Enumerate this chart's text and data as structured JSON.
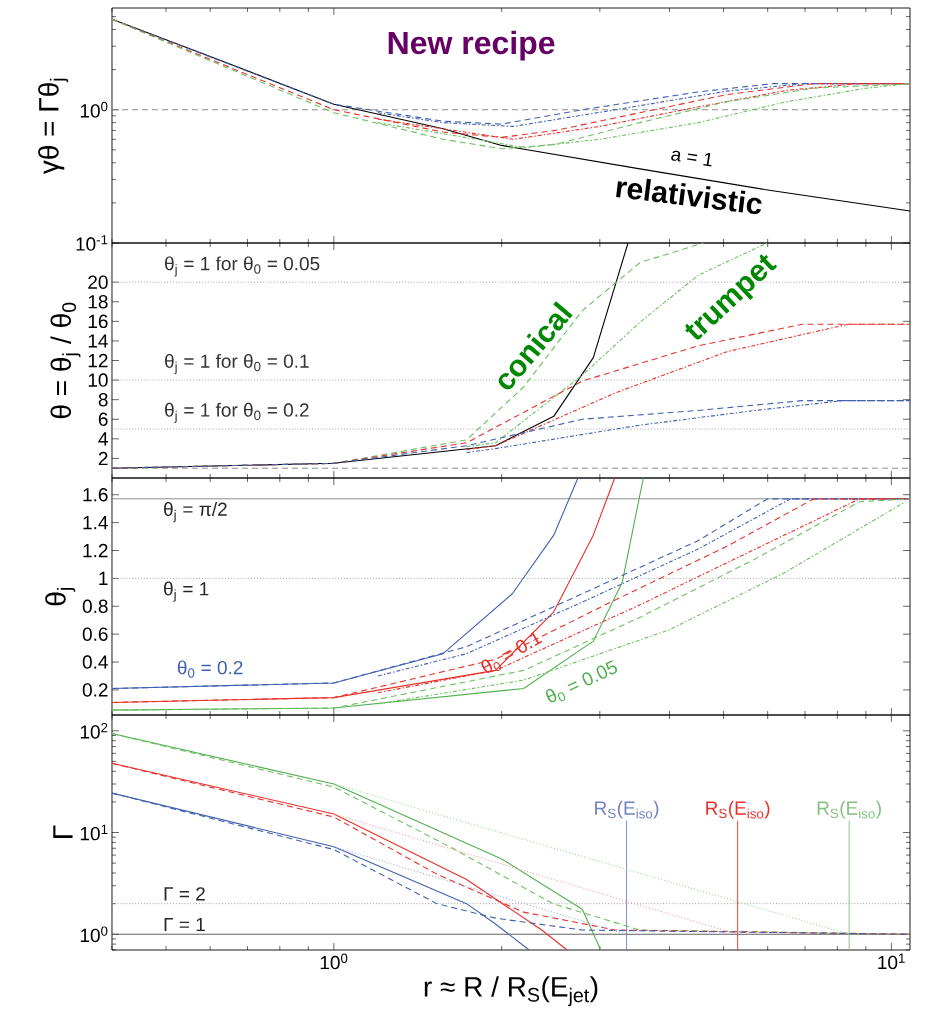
{
  "chart_data": [
    {
      "type": "line",
      "ylabel": "γθ = Γθ$_{j}$",
      "log": "xy",
      "tick_labels": "y",
      "xlim": [
        0.4,
        10.8
      ],
      "ylim": [
        0.1,
        5.8
      ],
      "yticks": [
        {
          "value": 0.1,
          "label": "10$^{-1}$"
        },
        {
          "value": 1,
          "label": "10$^{0}$"
        }
      ],
      "series": [
        {
          "color": "#000000",
          "line_style": "solid",
          "x": [
            0.4,
            0.62,
            1,
            1.57,
            2,
            3.54,
            6,
            10.8
          ],
          "values": [
            4.77,
            2.38,
            1.1,
            0.72,
            0.54,
            0.36,
            0.25,
            0.174
          ]
        },
        {
          "color": "#4060b0",
          "line_style": "dashed",
          "x": [
            0.4,
            1,
            1.57,
            2,
            2.79,
            4.5,
            6.13,
            10.8
          ],
          "values": [
            4.77,
            1.1,
            0.82,
            0.78,
            1.0,
            1.36,
            1.57,
            1.57
          ]
        },
        {
          "color": "#4060b0",
          "line_style": "dashdot",
          "x": [
            1.2,
            1.57,
            2.1,
            3.2,
            5.07,
            7,
            10.8
          ],
          "values": [
            0.95,
            0.8,
            0.75,
            1.0,
            1.38,
            1.57,
            1.57
          ]
        },
        {
          "color": "#e8302a",
          "line_style": "dashed",
          "x": [
            0.4,
            1,
            1.57,
            2,
            2.5,
            3.54,
            5.07,
            7.25,
            10.8
          ],
          "values": [
            4.77,
            1.0,
            0.68,
            0.62,
            0.7,
            0.95,
            1.3,
            1.57,
            1.57
          ]
        },
        {
          "color": "#e8302a",
          "line_style": "dashdot",
          "x": [
            1.2,
            2.1,
            3,
            4.5,
            6.5,
            8.77,
            10.8
          ],
          "values": [
            0.85,
            0.6,
            0.75,
            1.05,
            1.4,
            1.57,
            1.57
          ]
        },
        {
          "color": "#6cc060",
          "line_style": "dashed",
          "x": [
            0.4,
            1,
            1.57,
            2,
            2.5,
            3.54,
            5.07,
            7.25,
            10.8
          ],
          "values": [
            4.77,
            0.95,
            0.6,
            0.51,
            0.55,
            0.8,
            1.15,
            1.45,
            1.57
          ]
        },
        {
          "color": "#6cc060",
          "line_style": "dashdot",
          "x": [
            1.2,
            2.2,
            3,
            4.5,
            6.5,
            9,
            10.8
          ],
          "values": [
            0.8,
            0.52,
            0.6,
            0.8,
            1.15,
            1.45,
            1.57
          ]
        }
      ],
      "ref_lines": [
        {
          "axis": "y",
          "value": 1,
          "color": "#808080",
          "line_style": "dashed"
        }
      ],
      "annotations": [
        "New recipe",
        "a = 1",
        "relativistic"
      ]
    },
    {
      "type": "line",
      "ylabel": "θ = θ$_{j}$ / θ$_{0}$",
      "log": "x",
      "tick_labels": "y",
      "xlim": [
        0.4,
        10.8
      ],
      "ylim": [
        0,
        24
      ],
      "yticks": [
        2,
        4,
        6,
        8,
        10,
        12,
        14,
        16,
        18,
        20
      ],
      "series": [
        {
          "color": "#000000",
          "line_style": "solid",
          "x": [
            0.4,
            1,
            1.95,
            2.48,
            2.92,
            3.37
          ],
          "values": [
            1,
            1.5,
            3.3,
            6.3,
            12.3,
            24
          ]
        },
        {
          "color": "#6cc060",
          "line_style": "dashed",
          "x": [
            0.4,
            1,
            1.73,
            2.19,
            2.79,
            3.54,
            4.6
          ],
          "values": [
            1,
            1.5,
            3.9,
            9.3,
            17.1,
            22,
            24
          ]
        },
        {
          "color": "#6cc060",
          "line_style": "dashdot",
          "x": [
            1.73,
            1.95,
            2.79,
            3.54,
            4.5,
            5.99
          ],
          "values": [
            3.2,
            3.6,
            10.5,
            15.9,
            20.7,
            24
          ]
        },
        {
          "color": "#e8302a",
          "line_style": "dashed",
          "x": [
            0.4,
            1,
            1.73,
            2.79,
            4.5,
            6.92,
            10.8
          ],
          "values": [
            1,
            1.5,
            3.6,
            9.9,
            13.5,
            15.7,
            15.7
          ]
        },
        {
          "color": "#e8302a",
          "line_style": "dashdot",
          "x": [
            1.73,
            1.95,
            3.2,
            5.07,
            8.36,
            10.8
          ],
          "values": [
            2.9,
            3.3,
            8.7,
            12.9,
            15.7,
            15.7
          ]
        },
        {
          "color": "#4060b0",
          "line_style": "dashed",
          "x": [
            0.4,
            1,
            1.73,
            2.79,
            4.5,
            6.92,
            10.8
          ],
          "values": [
            1,
            1.5,
            3.3,
            6.0,
            6.9,
            7.9,
            7.9
          ]
        },
        {
          "color": "#4060b0",
          "line_style": "dashdot",
          "x": [
            1.73,
            1.95,
            3.54,
            5.7,
            8.2,
            10.8
          ],
          "values": [
            2.6,
            3.0,
            5.4,
            6.9,
            7.9,
            7.9
          ]
        }
      ],
      "ref_lines": [
        {
          "axis": "y",
          "value": 1,
          "color": "#808080",
          "line_style": "dashed"
        },
        {
          "axis": "y",
          "value": 20,
          "color": "#909090",
          "line_style": "dotted"
        },
        {
          "axis": "y",
          "value": 10,
          "color": "#909090",
          "line_style": "dotted"
        },
        {
          "axis": "y",
          "value": 5,
          "color": "#909090",
          "line_style": "dotted"
        }
      ],
      "annotations": [
        "θ$_{j}$ = 1  for  θ$_{0}$ = 0.05",
        "θ$_{j}$ = 1  for  θ$_{0}$ = 0.1",
        "θ$_{j}$ = 1  for  θ$_{0}$ = 0.2",
        "conical",
        "trumpet"
      ]
    },
    {
      "type": "line",
      "ylabel": "θ$_{j}$",
      "log": "x",
      "tick_labels": "y",
      "xlim": [
        0.4,
        10.8
      ],
      "ylim": [
        0.02,
        1.72
      ],
      "yticks": [
        0.2,
        0.4,
        0.6,
        0.8,
        1,
        1.2,
        1.4,
        1.6
      ],
      "series": [
        {
          "color": "#4060b0",
          "line_style": "solid",
          "x": [
            0.4,
            1,
            1.57,
            2.09,
            2.48,
            2.74
          ],
          "values": [
            0.21,
            0.25,
            0.46,
            0.89,
            1.31,
            1.72
          ]
        },
        {
          "color": "#e8302a",
          "line_style": "solid",
          "x": [
            0.4,
            1,
            1.95,
            2.48,
            2.92,
            3.19
          ],
          "values": [
            0.11,
            0.145,
            0.34,
            0.76,
            1.31,
            1.72
          ]
        },
        {
          "color": "#50b050",
          "line_style": "solid",
          "x": [
            0.4,
            1,
            2.19,
            2.92,
            3.29,
            3.59
          ],
          "values": [
            0.055,
            0.07,
            0.21,
            0.55,
            0.97,
            1.72
          ]
        },
        {
          "color": "#4060b0",
          "line_style": "dashed",
          "x": [
            0.4,
            1,
            1.73,
            2.79,
            4.5,
            5.99,
            10.8
          ],
          "values": [
            0.21,
            0.25,
            0.51,
            0.89,
            1.27,
            1.57,
            1.57
          ]
        },
        {
          "color": "#4060b0",
          "line_style": "dashdot",
          "x": [
            1.2,
            1.73,
            2.79,
            4.5,
            6.59,
            10.8
          ],
          "values": [
            0.3,
            0.46,
            0.83,
            1.21,
            1.57,
            1.57
          ]
        },
        {
          "color": "#e8302a",
          "line_style": "dashed",
          "x": [
            0.4,
            1,
            1.95,
            3.14,
            5.07,
            7.25,
            10.8
          ],
          "values": [
            0.11,
            0.145,
            0.42,
            0.83,
            1.23,
            1.57,
            1.57
          ]
        },
        {
          "color": "#e8302a",
          "line_style": "dashdot",
          "x": [
            1.2,
            1.95,
            3.54,
            5.7,
            8.77,
            10.8
          ],
          "values": [
            0.18,
            0.34,
            0.81,
            1.21,
            1.57,
            1.57
          ]
        },
        {
          "color": "#6cc060",
          "line_style": "dashed",
          "x": [
            0.4,
            1,
            2.19,
            3.54,
            5.7,
            8.77,
            10.8
          ],
          "values": [
            0.055,
            0.07,
            0.34,
            0.72,
            1.14,
            1.55,
            1.57
          ]
        },
        {
          "color": "#6cc060",
          "line_style": "dashdot",
          "x": [
            1.2,
            2.19,
            3.99,
            6.43,
            10.6
          ],
          "values": [
            0.1,
            0.27,
            0.63,
            1.04,
            1.55
          ]
        }
      ],
      "ref_lines": [
        {
          "axis": "y",
          "value": 1.5708,
          "color": "#808080",
          "line_style": "solid",
          "label": "θ$_{j}$ = π/2"
        },
        {
          "axis": "y",
          "value": 1,
          "color": "#909090",
          "line_style": "dotted",
          "label": "θ$_{j}$ = 1"
        }
      ],
      "annotations": [
        "θ$_{0}$ = 0.2",
        "θ$_{0}$ = 0.1",
        "θ$_{0}$ = 0.05"
      ]
    },
    {
      "type": "line",
      "xlabel": "r ≈ R / R$_{S}$(E$_{jet}$)",
      "ylabel": "Γ",
      "log": "xy",
      "xlim": [
        0.4,
        10.8
      ],
      "ylim": [
        0.7,
        143
      ],
      "xticks": [
        {
          "value": 1,
          "label": "10$^{0}$"
        },
        {
          "value": 10,
          "label": "10$^{1}$"
        }
      ],
      "yticks": [
        {
          "value": 1,
          "label": "10$^{0}$"
        },
        {
          "value": 10,
          "label": "10$^{1}$"
        },
        {
          "value": 100,
          "label": "10$^{2}$"
        }
      ],
      "series": [
        {
          "color": "#50b050",
          "line_style": "solid",
          "x": [
            0.4,
            1,
            2,
            2.79,
            3.01
          ],
          "values": [
            94,
            30,
            5.5,
            1.76,
            0.7
          ]
        },
        {
          "color": "#e8302a",
          "line_style": "solid",
          "x": [
            0.4,
            1,
            1.73,
            2.36,
            2.62
          ],
          "values": [
            47.9,
            15.2,
            3.45,
            1.1,
            0.7
          ]
        },
        {
          "color": "#4060b0",
          "line_style": "solid",
          "x": [
            0.4,
            1,
            1.73,
            1.95,
            2.24
          ],
          "values": [
            24.4,
            7.25,
            2.0,
            1.26,
            0.7
          ]
        },
        {
          "color": "#6cc060",
          "line_style": "dashed",
          "x": [
            0.4,
            1,
            1.65,
            2.47,
            3.54,
            10.8
          ],
          "values": [
            94,
            28,
            6.8,
            2.0,
            1.1,
            1.0
          ]
        },
        {
          "color": "#e8302a",
          "line_style": "dashed",
          "x": [
            0.4,
            1,
            1.53,
            2.19,
            3.2,
            10.8
          ],
          "values": [
            47.9,
            14.2,
            3.9,
            1.65,
            1.1,
            1.0
          ]
        },
        {
          "color": "#4060b0",
          "line_style": "dashed",
          "x": [
            0.4,
            1,
            1.53,
            1.95,
            2.79,
            10.8
          ],
          "values": [
            24.4,
            6.8,
            2.0,
            1.44,
            1.1,
            1.0
          ]
        },
        {
          "color": "#9fd89a",
          "line_style": "dotted",
          "x": [
            1,
            8.4
          ],
          "values": [
            30,
            1
          ]
        },
        {
          "color": "#f0a0a0",
          "line_style": "dotted",
          "x": [
            1,
            5.3
          ],
          "values": [
            15.2,
            1
          ]
        },
        {
          "color": "#a0b0e0",
          "line_style": "dotted",
          "x": [
            1,
            3.35
          ],
          "values": [
            7.25,
            1
          ]
        }
      ],
      "ref_lines": [
        {
          "axis": "y",
          "value": 2,
          "color": "#909090",
          "line_style": "dotted",
          "label": "Γ = 2"
        },
        {
          "axis": "y",
          "value": 1,
          "color": "#505050",
          "line_style": "solid",
          "label": "Γ = 1"
        },
        {
          "axis": "x",
          "value": 3.35,
          "color": "#7080c0",
          "line_style": "solid",
          "label": "R$_{S}$(E$_{iso}$)"
        },
        {
          "axis": "x",
          "value": 5.3,
          "color": "#e8302a",
          "line_style": "solid",
          "label": "R$_{S}$(E$_{iso}$)"
        },
        {
          "axis": "x",
          "value": 8.4,
          "color": "#80c080",
          "line_style": "solid",
          "label": "R$_{S}$(E$_{iso}$)"
        }
      ]
    }
  ]
}
